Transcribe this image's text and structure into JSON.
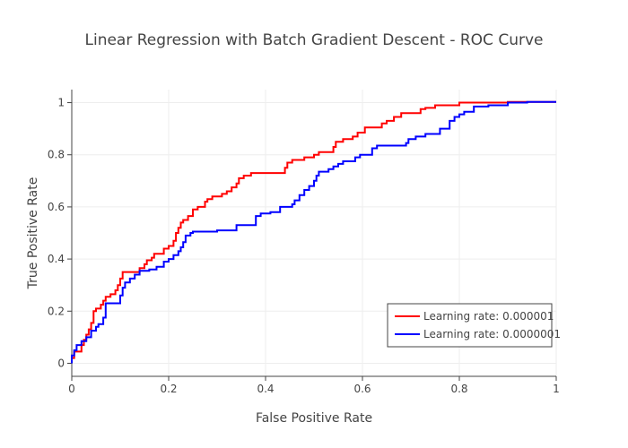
{
  "chart_data": {
    "type": "line",
    "title": "Linear Regression with Batch Gradient Descent - ROC Curve",
    "xlabel": "False Positive Rate",
    "ylabel": "True Positive Rate",
    "xlim": [
      0,
      1
    ],
    "ylim": [
      -0.05,
      1.05
    ],
    "x_ticks": [
      0,
      0.2,
      0.4,
      0.6,
      0.8,
      1
    ],
    "y_ticks": [
      0,
      0.2,
      0.4,
      0.6,
      0.8,
      1
    ],
    "x_tick_labels": [
      "0",
      "0.2",
      "0.4",
      "0.6",
      "0.8",
      "1"
    ],
    "y_tick_labels": [
      "0",
      "0.2",
      "0.4",
      "0.6",
      "0.8",
      "1"
    ],
    "grid": true,
    "legend_position": "bottom-right",
    "series": [
      {
        "name": "Learning rate: 0.000001",
        "color": "#ff0000",
        "points": [
          [
            0,
            0
          ],
          [
            0,
            0.02
          ],
          [
            0.005,
            0.02
          ],
          [
            0.005,
            0.045
          ],
          [
            0.02,
            0.045
          ],
          [
            0.02,
            0.07
          ],
          [
            0.025,
            0.07
          ],
          [
            0.025,
            0.09
          ],
          [
            0.03,
            0.09
          ],
          [
            0.03,
            0.11
          ],
          [
            0.035,
            0.11
          ],
          [
            0.035,
            0.13
          ],
          [
            0.04,
            0.13
          ],
          [
            0.04,
            0.155
          ],
          [
            0.045,
            0.155
          ],
          [
            0.045,
            0.2
          ],
          [
            0.05,
            0.2
          ],
          [
            0.05,
            0.21
          ],
          [
            0.06,
            0.21
          ],
          [
            0.06,
            0.225
          ],
          [
            0.065,
            0.225
          ],
          [
            0.065,
            0.24
          ],
          [
            0.07,
            0.24
          ],
          [
            0.07,
            0.255
          ],
          [
            0.08,
            0.255
          ],
          [
            0.08,
            0.265
          ],
          [
            0.09,
            0.265
          ],
          [
            0.09,
            0.28
          ],
          [
            0.095,
            0.28
          ],
          [
            0.095,
            0.3
          ],
          [
            0.1,
            0.3
          ],
          [
            0.1,
            0.325
          ],
          [
            0.105,
            0.325
          ],
          [
            0.105,
            0.35
          ],
          [
            0.14,
            0.35
          ],
          [
            0.14,
            0.365
          ],
          [
            0.15,
            0.365
          ],
          [
            0.15,
            0.38
          ],
          [
            0.155,
            0.38
          ],
          [
            0.155,
            0.395
          ],
          [
            0.165,
            0.395
          ],
          [
            0.165,
            0.405
          ],
          [
            0.17,
            0.405
          ],
          [
            0.17,
            0.42
          ],
          [
            0.19,
            0.42
          ],
          [
            0.19,
            0.44
          ],
          [
            0.2,
            0.44
          ],
          [
            0.2,
            0.45
          ],
          [
            0.21,
            0.45
          ],
          [
            0.21,
            0.47
          ],
          [
            0.215,
            0.47
          ],
          [
            0.215,
            0.5
          ],
          [
            0.22,
            0.5
          ],
          [
            0.22,
            0.52
          ],
          [
            0.225,
            0.52
          ],
          [
            0.225,
            0.54
          ],
          [
            0.23,
            0.54
          ],
          [
            0.23,
            0.55
          ],
          [
            0.24,
            0.55
          ],
          [
            0.24,
            0.565
          ],
          [
            0.25,
            0.565
          ],
          [
            0.25,
            0.59
          ],
          [
            0.26,
            0.59
          ],
          [
            0.26,
            0.6
          ],
          [
            0.275,
            0.6
          ],
          [
            0.275,
            0.62
          ],
          [
            0.28,
            0.62
          ],
          [
            0.28,
            0.63
          ],
          [
            0.29,
            0.63
          ],
          [
            0.29,
            0.64
          ],
          [
            0.31,
            0.64
          ],
          [
            0.31,
            0.65
          ],
          [
            0.32,
            0.65
          ],
          [
            0.32,
            0.66
          ],
          [
            0.33,
            0.66
          ],
          [
            0.33,
            0.675
          ],
          [
            0.34,
            0.675
          ],
          [
            0.34,
            0.69
          ],
          [
            0.345,
            0.69
          ],
          [
            0.345,
            0.71
          ],
          [
            0.355,
            0.71
          ],
          [
            0.355,
            0.72
          ],
          [
            0.37,
            0.72
          ],
          [
            0.37,
            0.73
          ],
          [
            0.44,
            0.73
          ],
          [
            0.44,
            0.75
          ],
          [
            0.445,
            0.75
          ],
          [
            0.445,
            0.77
          ],
          [
            0.455,
            0.77
          ],
          [
            0.455,
            0.78
          ],
          [
            0.48,
            0.78
          ],
          [
            0.48,
            0.79
          ],
          [
            0.5,
            0.79
          ],
          [
            0.5,
            0.8
          ],
          [
            0.51,
            0.8
          ],
          [
            0.51,
            0.81
          ],
          [
            0.54,
            0.81
          ],
          [
            0.54,
            0.83
          ],
          [
            0.545,
            0.83
          ],
          [
            0.545,
            0.85
          ],
          [
            0.56,
            0.85
          ],
          [
            0.56,
            0.86
          ],
          [
            0.58,
            0.86
          ],
          [
            0.58,
            0.87
          ],
          [
            0.59,
            0.87
          ],
          [
            0.59,
            0.885
          ],
          [
            0.605,
            0.885
          ],
          [
            0.605,
            0.905
          ],
          [
            0.64,
            0.905
          ],
          [
            0.64,
            0.92
          ],
          [
            0.65,
            0.92
          ],
          [
            0.65,
            0.93
          ],
          [
            0.665,
            0.93
          ],
          [
            0.665,
            0.945
          ],
          [
            0.68,
            0.945
          ],
          [
            0.68,
            0.96
          ],
          [
            0.72,
            0.96
          ],
          [
            0.72,
            0.975
          ],
          [
            0.73,
            0.975
          ],
          [
            0.73,
            0.98
          ],
          [
            0.75,
            0.98
          ],
          [
            0.75,
            0.99
          ],
          [
            0.8,
            0.99
          ],
          [
            0.8,
            1.0
          ],
          [
            0.9,
            1.0
          ],
          [
            0.9,
            1.003
          ],
          [
            0.95,
            1.003
          ],
          [
            1,
            1.003
          ]
        ]
      },
      {
        "name": "Learning rate: 0.0000001",
        "color": "#0000ff",
        "points": [
          [
            0,
            0
          ],
          [
            0,
            0.03
          ],
          [
            0.005,
            0.03
          ],
          [
            0.005,
            0.05
          ],
          [
            0.01,
            0.05
          ],
          [
            0.01,
            0.07
          ],
          [
            0.02,
            0.07
          ],
          [
            0.02,
            0.085
          ],
          [
            0.03,
            0.085
          ],
          [
            0.03,
            0.1
          ],
          [
            0.04,
            0.1
          ],
          [
            0.04,
            0.125
          ],
          [
            0.05,
            0.125
          ],
          [
            0.05,
            0.14
          ],
          [
            0.055,
            0.14
          ],
          [
            0.055,
            0.15
          ],
          [
            0.065,
            0.15
          ],
          [
            0.065,
            0.175
          ],
          [
            0.07,
            0.175
          ],
          [
            0.07,
            0.23
          ],
          [
            0.1,
            0.23
          ],
          [
            0.1,
            0.26
          ],
          [
            0.105,
            0.26
          ],
          [
            0.105,
            0.29
          ],
          [
            0.11,
            0.29
          ],
          [
            0.11,
            0.31
          ],
          [
            0.12,
            0.31
          ],
          [
            0.12,
            0.325
          ],
          [
            0.13,
            0.325
          ],
          [
            0.13,
            0.34
          ],
          [
            0.14,
            0.34
          ],
          [
            0.14,
            0.355
          ],
          [
            0.16,
            0.355
          ],
          [
            0.16,
            0.36
          ],
          [
            0.175,
            0.36
          ],
          [
            0.175,
            0.37
          ],
          [
            0.19,
            0.37
          ],
          [
            0.19,
            0.39
          ],
          [
            0.2,
            0.39
          ],
          [
            0.2,
            0.4
          ],
          [
            0.21,
            0.4
          ],
          [
            0.21,
            0.415
          ],
          [
            0.22,
            0.415
          ],
          [
            0.22,
            0.43
          ],
          [
            0.225,
            0.43
          ],
          [
            0.225,
            0.445
          ],
          [
            0.23,
            0.445
          ],
          [
            0.23,
            0.465
          ],
          [
            0.235,
            0.465
          ],
          [
            0.235,
            0.49
          ],
          [
            0.245,
            0.49
          ],
          [
            0.245,
            0.5
          ],
          [
            0.25,
            0.5
          ],
          [
            0.25,
            0.505
          ],
          [
            0.3,
            0.505
          ],
          [
            0.3,
            0.51
          ],
          [
            0.34,
            0.51
          ],
          [
            0.34,
            0.53
          ],
          [
            0.38,
            0.53
          ],
          [
            0.38,
            0.565
          ],
          [
            0.39,
            0.565
          ],
          [
            0.39,
            0.575
          ],
          [
            0.41,
            0.575
          ],
          [
            0.41,
            0.58
          ],
          [
            0.43,
            0.58
          ],
          [
            0.43,
            0.6
          ],
          [
            0.455,
            0.6
          ],
          [
            0.455,
            0.61
          ],
          [
            0.46,
            0.61
          ],
          [
            0.46,
            0.625
          ],
          [
            0.47,
            0.625
          ],
          [
            0.47,
            0.645
          ],
          [
            0.48,
            0.645
          ],
          [
            0.48,
            0.665
          ],
          [
            0.49,
            0.665
          ],
          [
            0.49,
            0.68
          ],
          [
            0.5,
            0.68
          ],
          [
            0.5,
            0.7
          ],
          [
            0.505,
            0.7
          ],
          [
            0.505,
            0.72
          ],
          [
            0.51,
            0.72
          ],
          [
            0.51,
            0.735
          ],
          [
            0.53,
            0.735
          ],
          [
            0.53,
            0.745
          ],
          [
            0.54,
            0.745
          ],
          [
            0.54,
            0.755
          ],
          [
            0.55,
            0.755
          ],
          [
            0.55,
            0.765
          ],
          [
            0.56,
            0.765
          ],
          [
            0.56,
            0.775
          ],
          [
            0.585,
            0.775
          ],
          [
            0.585,
            0.79
          ],
          [
            0.595,
            0.79
          ],
          [
            0.595,
            0.8
          ],
          [
            0.62,
            0.8
          ],
          [
            0.62,
            0.825
          ],
          [
            0.63,
            0.825
          ],
          [
            0.63,
            0.835
          ],
          [
            0.69,
            0.835
          ],
          [
            0.69,
            0.845
          ],
          [
            0.695,
            0.845
          ],
          [
            0.695,
            0.86
          ],
          [
            0.71,
            0.86
          ],
          [
            0.71,
            0.87
          ],
          [
            0.73,
            0.87
          ],
          [
            0.73,
            0.88
          ],
          [
            0.76,
            0.88
          ],
          [
            0.76,
            0.9
          ],
          [
            0.78,
            0.9
          ],
          [
            0.78,
            0.93
          ],
          [
            0.79,
            0.93
          ],
          [
            0.79,
            0.945
          ],
          [
            0.8,
            0.945
          ],
          [
            0.8,
            0.955
          ],
          [
            0.81,
            0.955
          ],
          [
            0.81,
            0.965
          ],
          [
            0.83,
            0.965
          ],
          [
            0.83,
            0.985
          ],
          [
            0.86,
            0.985
          ],
          [
            0.86,
            0.99
          ],
          [
            0.9,
            0.99
          ],
          [
            0.9,
            1.0
          ],
          [
            0.94,
            1.0
          ],
          [
            0.94,
            1.003
          ],
          [
            1,
            1.003
          ]
        ]
      }
    ]
  }
}
